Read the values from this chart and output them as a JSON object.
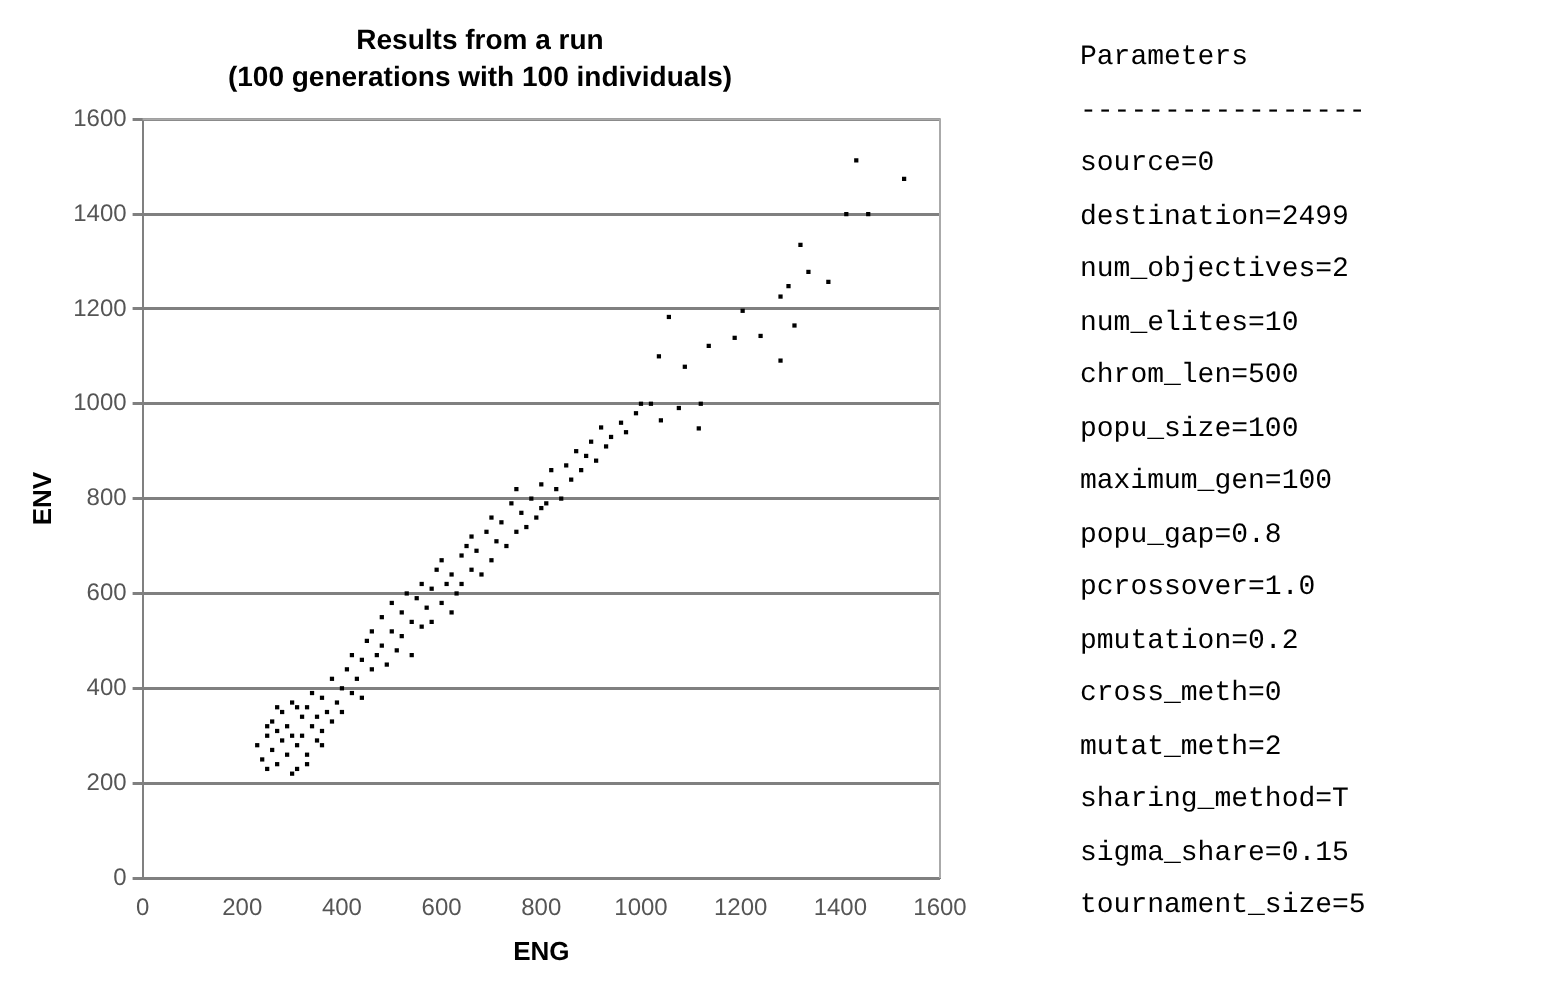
{
  "chart_data": {
    "type": "scatter",
    "title": "Results from a run",
    "subtitle": "(100 generations with 100 individuals)",
    "xlabel": "ENG",
    "ylabel": "ENV",
    "xlim": [
      0,
      1600
    ],
    "ylim": [
      0,
      1600
    ],
    "xticks": [
      0,
      200,
      400,
      600,
      800,
      1000,
      1200,
      1400,
      1600
    ],
    "yticks": [
      0,
      200,
      400,
      600,
      800,
      1000,
      1200,
      1400,
      1600
    ],
    "grid": "y",
    "marker": "square",
    "series": [
      {
        "color": "#000000",
        "x": [
          230,
          240,
          250,
          250,
          260,
          260,
          270,
          270,
          280,
          280,
          290,
          290,
          300,
          300,
          310,
          310,
          320,
          320,
          330,
          330,
          340,
          340,
          350,
          350,
          360,
          360,
          370,
          380,
          380,
          390,
          400,
          400,
          410,
          420,
          420,
          430,
          440,
          440,
          450,
          460,
          460,
          470,
          480,
          480,
          490,
          500,
          500,
          510,
          520,
          520,
          530,
          540,
          540,
          550,
          560,
          560,
          570,
          580,
          580,
          590,
          600,
          600,
          610,
          620,
          620,
          630,
          640,
          640,
          650,
          660,
          660,
          670,
          680,
          690,
          700,
          700,
          710,
          720,
          730,
          740,
          750,
          750,
          760,
          770,
          780,
          790,
          800,
          800,
          810,
          820,
          830,
          840,
          850,
          860,
          870,
          880,
          890,
          900,
          910,
          920,
          930,
          940,
          960,
          970,
          990,
          1000,
          1020,
          1036,
          1040,
          1056,
          1076,
          1088,
          1116,
          1120,
          1136,
          1188,
          1204,
          1240,
          1280,
          1280,
          1296,
          1308,
          1320,
          1336,
          1376,
          1412,
          1432,
          1456,
          1528,
          270,
          300,
          330,
          360,
          250,
          310
        ],
        "values": [
          280,
          250,
          300,
          230,
          270,
          330,
          240,
          310,
          290,
          350,
          260,
          320,
          300,
          370,
          230,
          280,
          340,
          300,
          260,
          360,
          320,
          390,
          290,
          340,
          310,
          380,
          350,
          330,
          420,
          370,
          400,
          350,
          440,
          390,
          470,
          420,
          460,
          380,
          500,
          440,
          520,
          470,
          490,
          550,
          450,
          520,
          580,
          480,
          560,
          510,
          600,
          540,
          470,
          590,
          530,
          620,
          570,
          610,
          540,
          650,
          580,
          670,
          620,
          560,
          640,
          600,
          680,
          620,
          700,
          650,
          720,
          690,
          640,
          730,
          670,
          760,
          710,
          750,
          700,
          790,
          730,
          820,
          770,
          740,
          800,
          760,
          830,
          780,
          790,
          860,
          820,
          800,
          870,
          840,
          900,
          860,
          890,
          920,
          880,
          950,
          910,
          930,
          960,
          940,
          980,
          1000,
          1000,
          1100,
          965,
          1183,
          991,
          1078,
          948,
          1000,
          1122,
          1139,
          1196,
          1143,
          1226,
          1091,
          1248,
          1165,
          1335,
          1278,
          1257,
          1400,
          1513,
          1400,
          1474,
          360,
          220,
          240,
          280,
          320,
          360
        ]
      }
    ],
    "annotations": [
      "Parameters",
      "-----------------",
      "source=0",
      "destination=2499",
      "num_objectives=2",
      "num_elites=10",
      "chrom_len=500",
      "popu_size=100",
      "maximum_gen=100",
      "popu_gap=0.8",
      "pcrossover=1.0",
      "pmutation=0.2",
      "cross_meth=0",
      "mutat_meth=2",
      "sharing_method=T",
      "sigma_share=0.15",
      "tournament_size=5"
    ]
  }
}
